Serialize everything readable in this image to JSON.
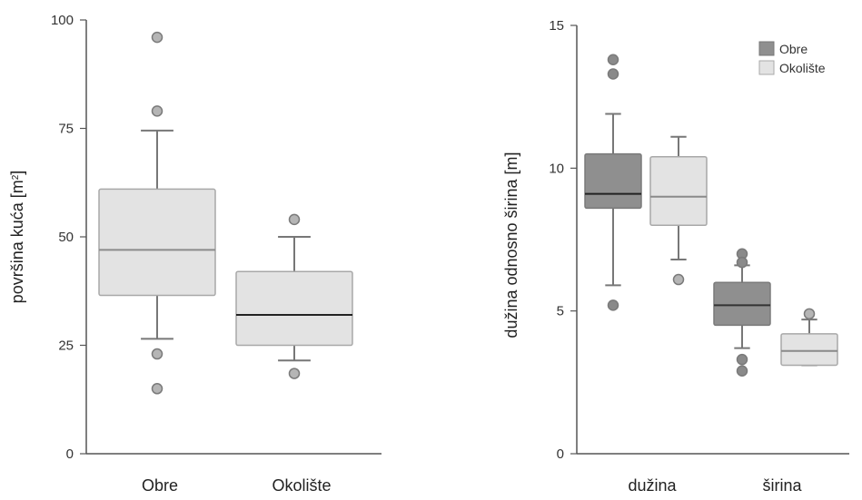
{
  "chart_data": [
    {
      "type": "boxplot",
      "ylabel": "površina kuća [m²]",
      "ylabel_text": "površina kuća [m",
      "ylabel_sup": "2",
      "ylabel_end": "]",
      "ylim": [
        0,
        100
      ],
      "yticks": [
        "0",
        "25",
        "50",
        "75",
        "100"
      ],
      "yticks_values": [
        0,
        25,
        50,
        75,
        100
      ],
      "categories": [
        "Obre",
        "Okolište"
      ],
      "boxes": [
        {
          "category": "Obre",
          "whisker_low": 26.5,
          "q1": 36.5,
          "median": 47,
          "q3": 61,
          "whisker_high": 74.5,
          "outliers": [
            96,
            79,
            23,
            15
          ],
          "fill": "#e3e3e3",
          "median_color": "#8a8a8a"
        },
        {
          "category": "Okolište",
          "whisker_low": 21.5,
          "q1": 25,
          "median": 32,
          "q3": 42,
          "whisker_high": 50,
          "outliers": [
            54,
            18.5
          ],
          "fill": "#e3e3e3",
          "median_color": "#222222"
        }
      ]
    },
    {
      "type": "boxplot",
      "ylabel": "dužina odnosno širina [m]",
      "ylim": [
        0,
        15
      ],
      "yticks": [
        "0",
        "5",
        "10",
        "15"
      ],
      "yticks_values": [
        0,
        5,
        10,
        15
      ],
      "categories": [
        "dužina",
        "širina"
      ],
      "legend": {
        "placement": "top-right",
        "entries": [
          {
            "name": "Obre",
            "color": "#8f8f8f"
          },
          {
            "name": "Okolište",
            "color": "#e3e3e3"
          }
        ]
      },
      "boxes": [
        {
          "category": "dužina",
          "series": "Obre",
          "whisker_low": 5.9,
          "q1": 8.6,
          "median": 9.1,
          "q3": 10.5,
          "whisker_high": 11.9,
          "outliers": [
            13.8,
            13.3,
            5.2
          ],
          "fill": "#8f8f8f",
          "median_color": "#222222"
        },
        {
          "category": "dužina",
          "series": "Okolište",
          "whisker_low": 6.8,
          "q1": 8.0,
          "median": 9.0,
          "q3": 10.4,
          "whisker_high": 11.1,
          "outliers": [
            6.1
          ],
          "fill": "#e3e3e3",
          "median_color": "#8a8a8a"
        },
        {
          "category": "širina",
          "series": "Obre",
          "whisker_low": 3.7,
          "q1": 4.5,
          "median": 5.2,
          "q3": 6.0,
          "whisker_high": 6.6,
          "outliers": [
            7.0,
            6.7,
            3.3,
            2.9
          ],
          "fill": "#8f8f8f",
          "median_color": "#333333"
        },
        {
          "category": "širina",
          "series": "Okolište",
          "whisker_low": 3.1,
          "q1": 3.1,
          "median": 3.6,
          "q3": 4.2,
          "whisker_high": 4.7,
          "outliers": [
            4.9
          ],
          "fill": "#e3e3e3",
          "median_color": "#8a8a8a"
        }
      ]
    }
  ]
}
